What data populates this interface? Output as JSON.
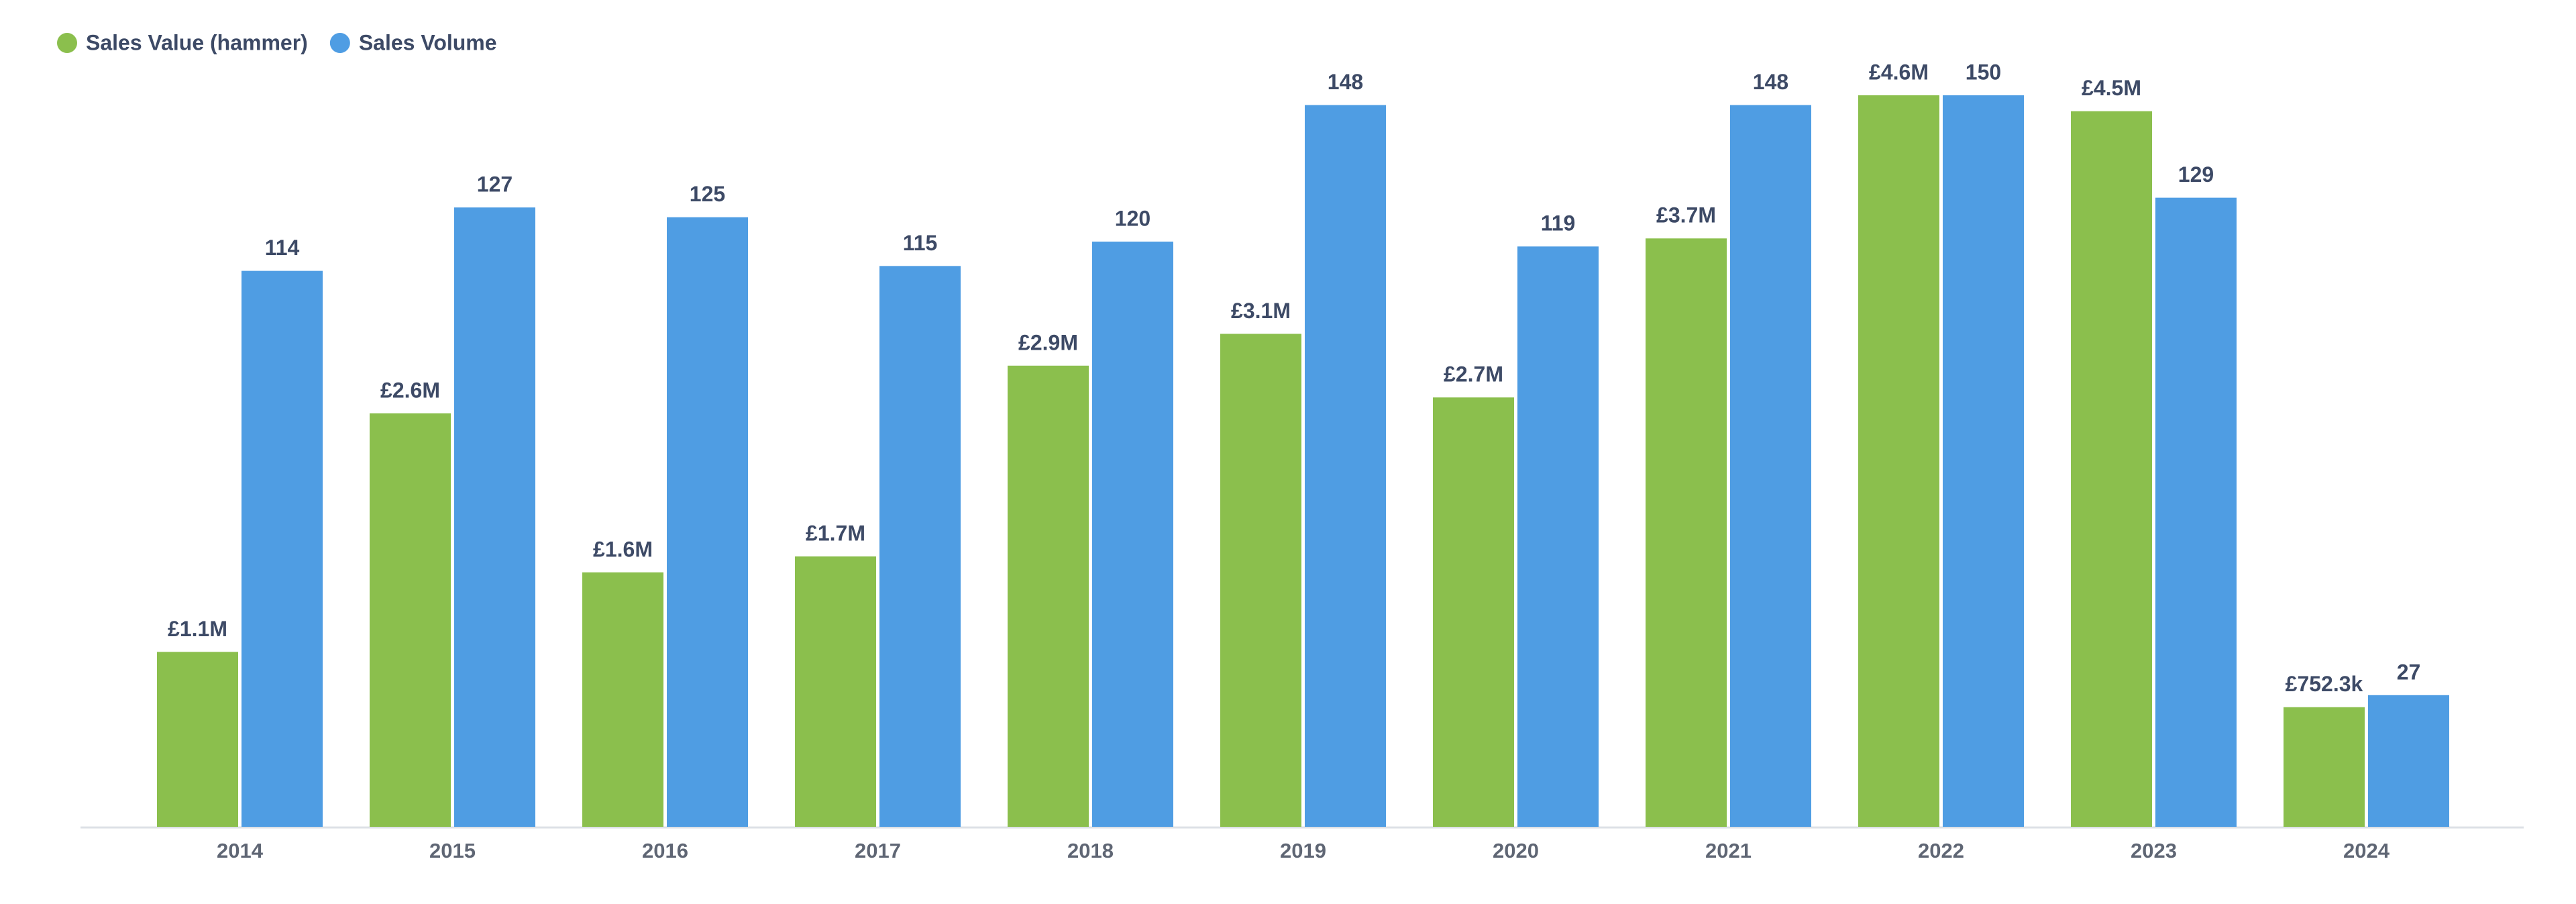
{
  "chart_data": {
    "type": "bar",
    "categories": [
      "2014",
      "2015",
      "2016",
      "2017",
      "2018",
      "2019",
      "2020",
      "2021",
      "2022",
      "2023",
      "2024"
    ],
    "series": [
      {
        "name": "Sales Value (hammer)",
        "color": "#8bbf4d",
        "values": [
          1100000,
          2600000,
          1600000,
          1700000,
          2900000,
          3100000,
          2700000,
          3700000,
          4600000,
          4500000,
          752300
        ],
        "value_labels": [
          "£1.1M",
          "£2.6M",
          "£1.6M",
          "£1.7M",
          "£2.9M",
          "£3.1M",
          "£2.7M",
          "£3.7M",
          "£4.6M",
          "£4.5M",
          "£752.3k"
        ]
      },
      {
        "name": "Sales Volume",
        "color": "#4f9de3",
        "axis": "y2",
        "values": [
          114,
          127,
          125,
          115,
          120,
          148,
          119,
          148,
          150,
          129,
          27
        ]
      }
    ],
    "ylim": [
      0,
      4600000
    ],
    "y2lim": [
      0,
      150
    ],
    "grid": false,
    "legend": "top-left"
  }
}
